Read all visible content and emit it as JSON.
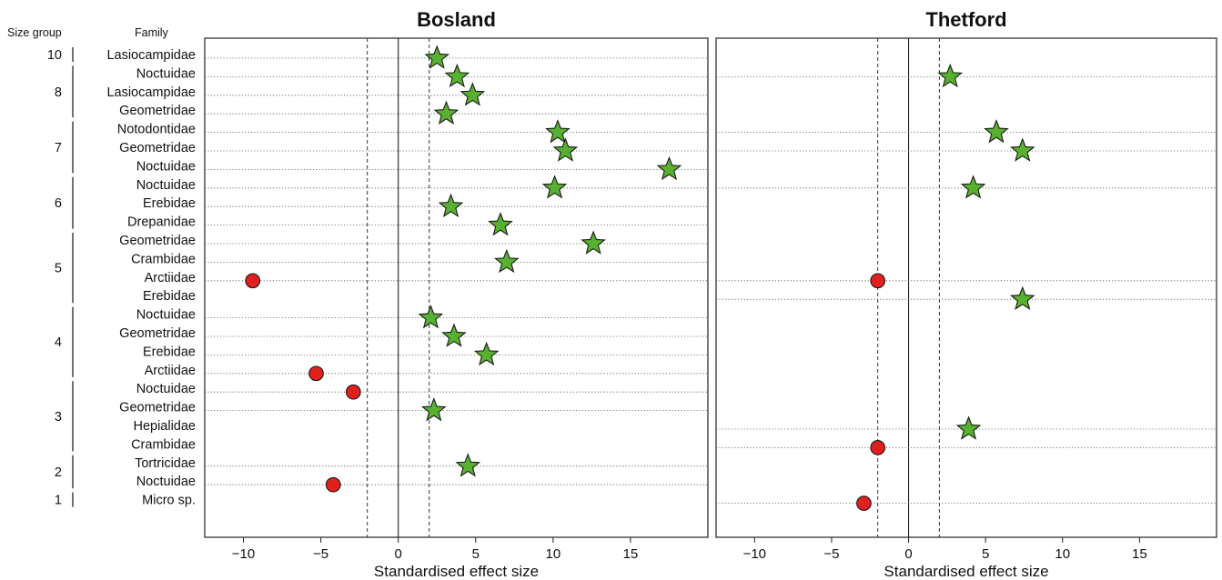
{
  "chart_data": {
    "type": "scatter",
    "header": {
      "size_group": "Size group",
      "family": "Family"
    },
    "xlabel": "Standardised effect size",
    "xticks": [
      -10,
      -5,
      0,
      5,
      10,
      15
    ],
    "xlim": [
      -12.5,
      20
    ],
    "reference_lines": {
      "solid": [
        0
      ],
      "dashed": [
        -2,
        2
      ]
    },
    "rows": [
      {
        "group": "10",
        "family": "Lasiocampidae"
      },
      {
        "group": "8",
        "family": "Noctuidae"
      },
      {
        "group": "8",
        "family": "Lasiocampidae"
      },
      {
        "group": "8",
        "family": "Geometridae"
      },
      {
        "group": "7",
        "family": "Notodontidae"
      },
      {
        "group": "7",
        "family": "Geometridae"
      },
      {
        "group": "7",
        "family": "Noctuidae"
      },
      {
        "group": "6",
        "family": "Noctuidae"
      },
      {
        "group": "6",
        "family": "Erebidae"
      },
      {
        "group": "6",
        "family": "Drepanidae"
      },
      {
        "group": "5",
        "family": "Geometridae"
      },
      {
        "group": "5",
        "family": "Crambidae"
      },
      {
        "group": "5",
        "family": "Arctiidae"
      },
      {
        "group": "5",
        "family": "Erebidae"
      },
      {
        "group": "4",
        "family": "Noctuidae"
      },
      {
        "group": "4",
        "family": "Geometridae"
      },
      {
        "group": "4",
        "family": "Erebidae"
      },
      {
        "group": "4",
        "family": "Arctiidae"
      },
      {
        "group": "3",
        "family": "Noctuidae"
      },
      {
        "group": "3",
        "family": "Geometridae"
      },
      {
        "group": "3",
        "family": "Hepialidae"
      },
      {
        "group": "3",
        "family": "Crambidae"
      },
      {
        "group": "2",
        "family": "Tortricidae"
      },
      {
        "group": "2",
        "family": "Noctuidae"
      },
      {
        "group": "1",
        "family": "Micro sp."
      }
    ],
    "groups": [
      "10",
      "8",
      "7",
      "6",
      "5",
      "4",
      "3",
      "2",
      "1"
    ],
    "legend_colors": {
      "significant_positive": "#58b030",
      "significant_negative": "#e01f1f"
    },
    "panels": [
      {
        "title": "Bosland",
        "points": [
          {
            "family": "Lasiocampidae",
            "group": "10",
            "x": 2.5,
            "marker": "star"
          },
          {
            "family": "Noctuidae",
            "group": "8",
            "x": 3.8,
            "marker": "star"
          },
          {
            "family": "Lasiocampidae",
            "group": "8",
            "x": 4.8,
            "marker": "star"
          },
          {
            "family": "Geometridae",
            "group": "8",
            "x": 3.1,
            "marker": "star"
          },
          {
            "family": "Notodontidae",
            "group": "7",
            "x": 10.3,
            "marker": "star"
          },
          {
            "family": "Geometridae",
            "group": "7",
            "x": 10.8,
            "marker": "star"
          },
          {
            "family": "Noctuidae",
            "group": "7",
            "x": 17.5,
            "marker": "star"
          },
          {
            "family": "Noctuidae",
            "group": "6",
            "x": 10.1,
            "marker": "star"
          },
          {
            "family": "Erebidae",
            "group": "6",
            "x": 3.4,
            "marker": "star"
          },
          {
            "family": "Drepanidae",
            "group": "6",
            "x": 6.6,
            "marker": "star"
          },
          {
            "family": "Geometridae",
            "group": "5",
            "x": 12.6,
            "marker": "star"
          },
          {
            "family": "Crambidae",
            "group": "5",
            "x": 7.0,
            "marker": "star"
          },
          {
            "family": "Arctiidae",
            "group": "5",
            "x": -9.4,
            "marker": "circle"
          },
          {
            "family": "Noctuidae",
            "group": "4",
            "x": 2.1,
            "marker": "star"
          },
          {
            "family": "Geometridae",
            "group": "4",
            "x": 3.6,
            "marker": "star"
          },
          {
            "family": "Erebidae",
            "group": "4",
            "x": 5.7,
            "marker": "star"
          },
          {
            "family": "Arctiidae",
            "group": "4",
            "x": -5.3,
            "marker": "circle"
          },
          {
            "family": "Noctuidae",
            "group": "3",
            "x": -2.9,
            "marker": "circle"
          },
          {
            "family": "Geometridae",
            "group": "3",
            "x": 2.3,
            "marker": "star"
          },
          {
            "family": "Tortricidae",
            "group": "2",
            "x": 4.5,
            "marker": "star"
          },
          {
            "family": "Noctuidae",
            "group": "2",
            "x": -4.2,
            "marker": "circle"
          }
        ]
      },
      {
        "title": "Thetford",
        "points": [
          {
            "family": "Noctuidae",
            "group": "8",
            "x": 2.7,
            "marker": "star"
          },
          {
            "family": "Notodontidae",
            "group": "7",
            "x": 5.7,
            "marker": "star"
          },
          {
            "family": "Geometridae",
            "group": "7",
            "x": 7.4,
            "marker": "star"
          },
          {
            "family": "Noctuidae",
            "group": "6",
            "x": 4.2,
            "marker": "star"
          },
          {
            "family": "Arctiidae",
            "group": "5",
            "x": -2.0,
            "marker": "circle"
          },
          {
            "family": "Erebidae",
            "group": "5",
            "x": 7.4,
            "marker": "star"
          },
          {
            "family": "Hepialidae",
            "group": "3",
            "x": 3.9,
            "marker": "star"
          },
          {
            "family": "Crambidae",
            "group": "3",
            "x": -2.0,
            "marker": "circle"
          },
          {
            "family": "Micro sp.",
            "group": "1",
            "x": -2.9,
            "marker": "circle"
          }
        ]
      }
    ]
  }
}
